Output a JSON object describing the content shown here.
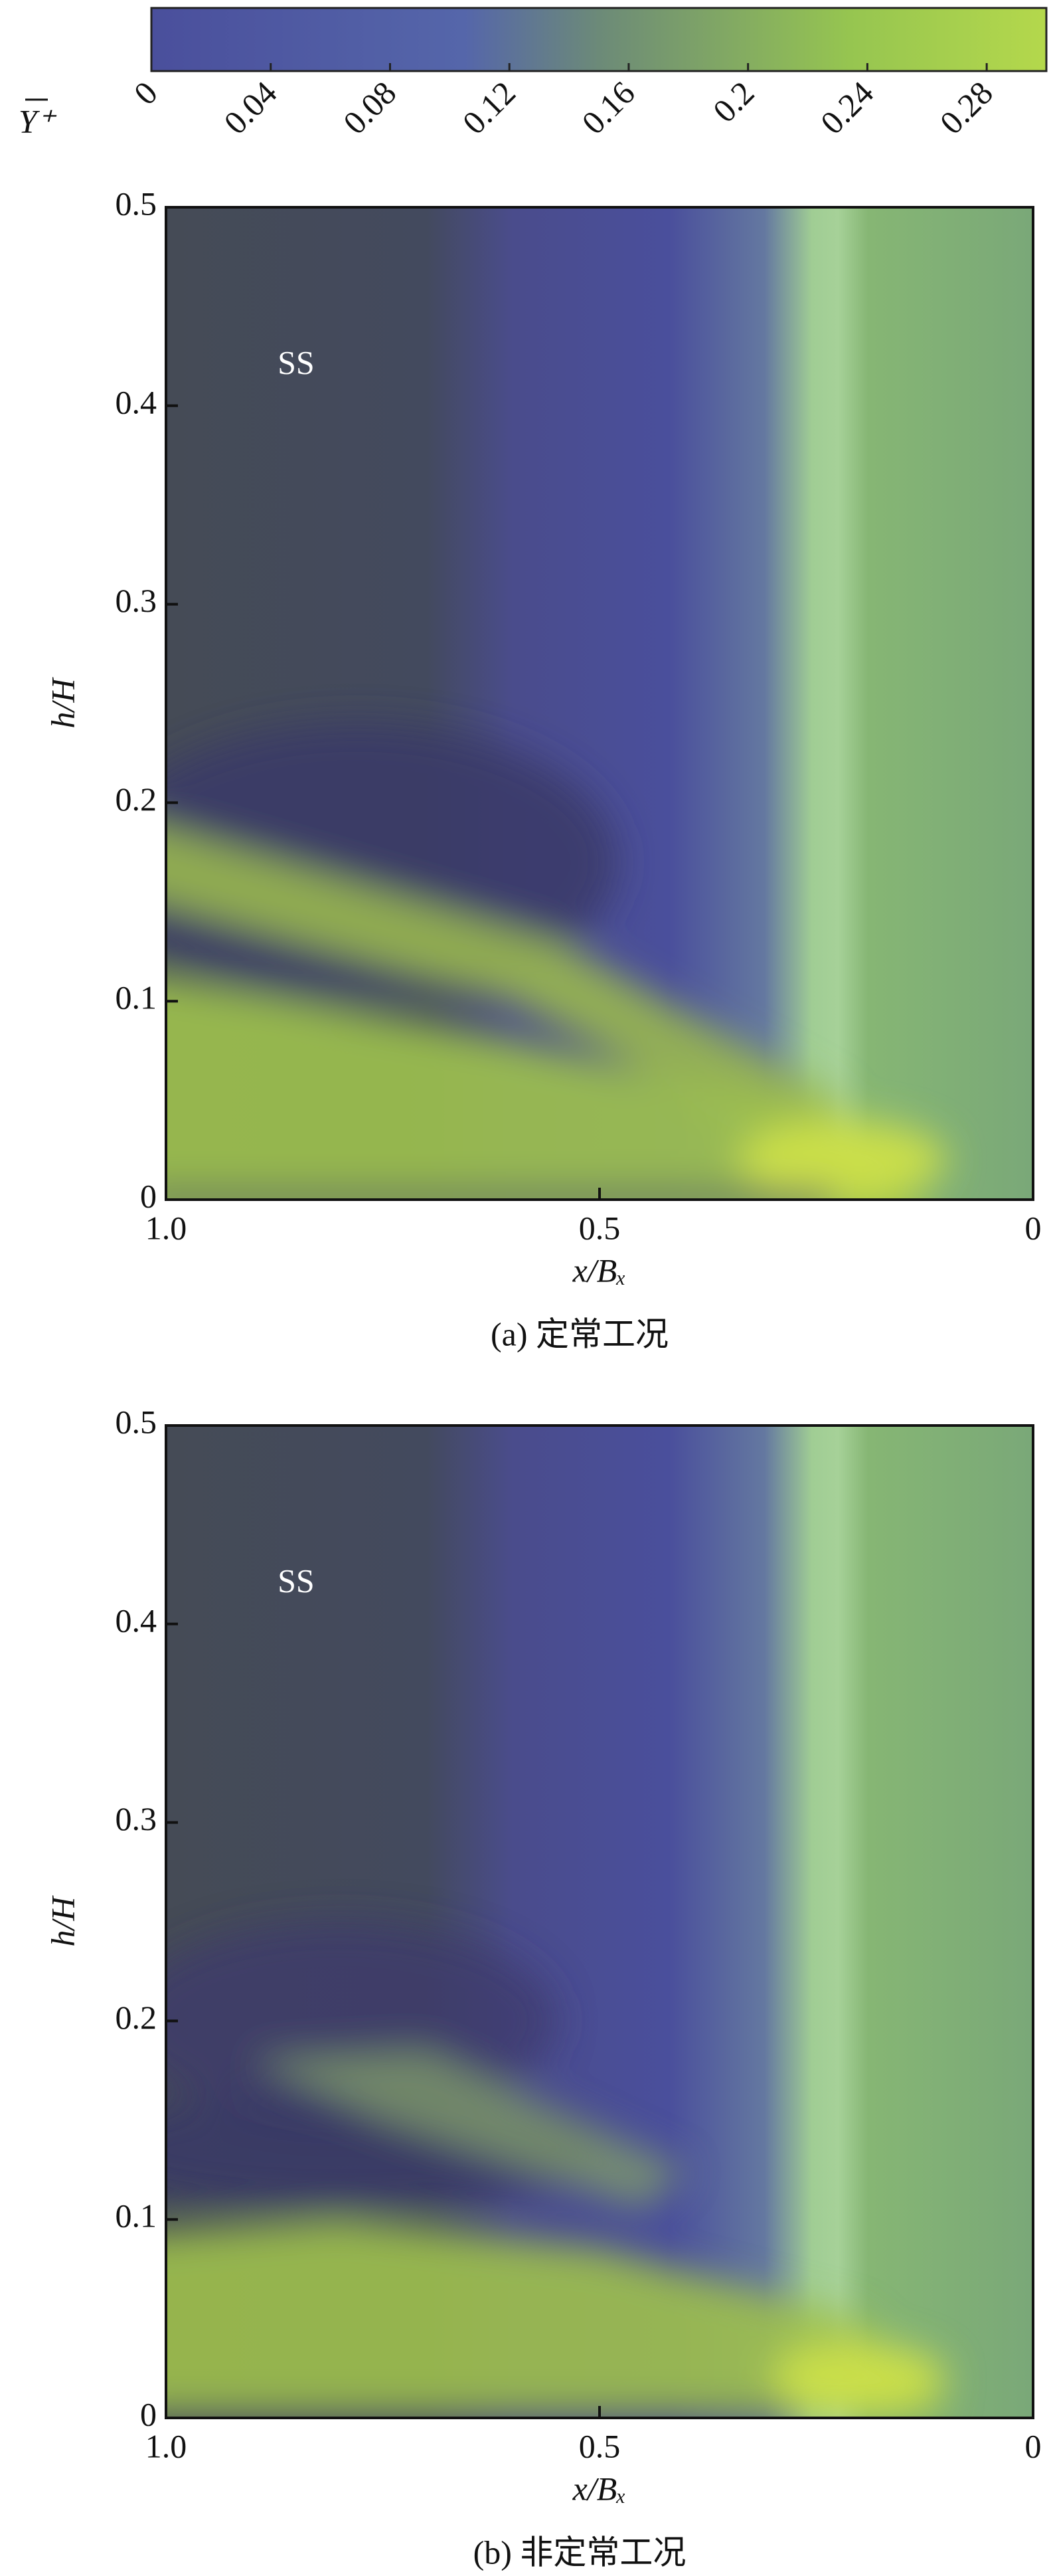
{
  "colorbar": {
    "label": "Y⁺",
    "clim": [
      0,
      0.3
    ],
    "ticks": [
      0,
      0.04,
      0.08,
      0.12,
      0.16,
      0.2,
      0.24,
      0.28
    ]
  },
  "chart_data": [
    {
      "type": "contour",
      "x_label": "x/Bₓ",
      "y_label": "h/H",
      "annotation": "SS",
      "caption": "(a) 定常工况",
      "xlim": [
        1,
        0
      ],
      "xticks": [
        {
          "value": 1,
          "label": "1.0"
        },
        0.5,
        0
      ],
      "ylim": [
        0,
        0.5
      ],
      "yticks": [
        0,
        0.1,
        0.2,
        0.3,
        0.4,
        0.5
      ]
    },
    {
      "type": "contour",
      "x_label": "x/Bₓ",
      "y_label": "h/H",
      "annotation": "SS",
      "caption": "(b) 非定常工况",
      "xlim": [
        1,
        0
      ],
      "xticks": [
        {
          "value": 1,
          "label": "1.0"
        },
        0.5,
        0
      ],
      "ylim": [
        0,
        0.5
      ],
      "yticks": [
        0,
        0.1,
        0.2,
        0.3,
        0.4,
        0.5
      ]
    }
  ]
}
